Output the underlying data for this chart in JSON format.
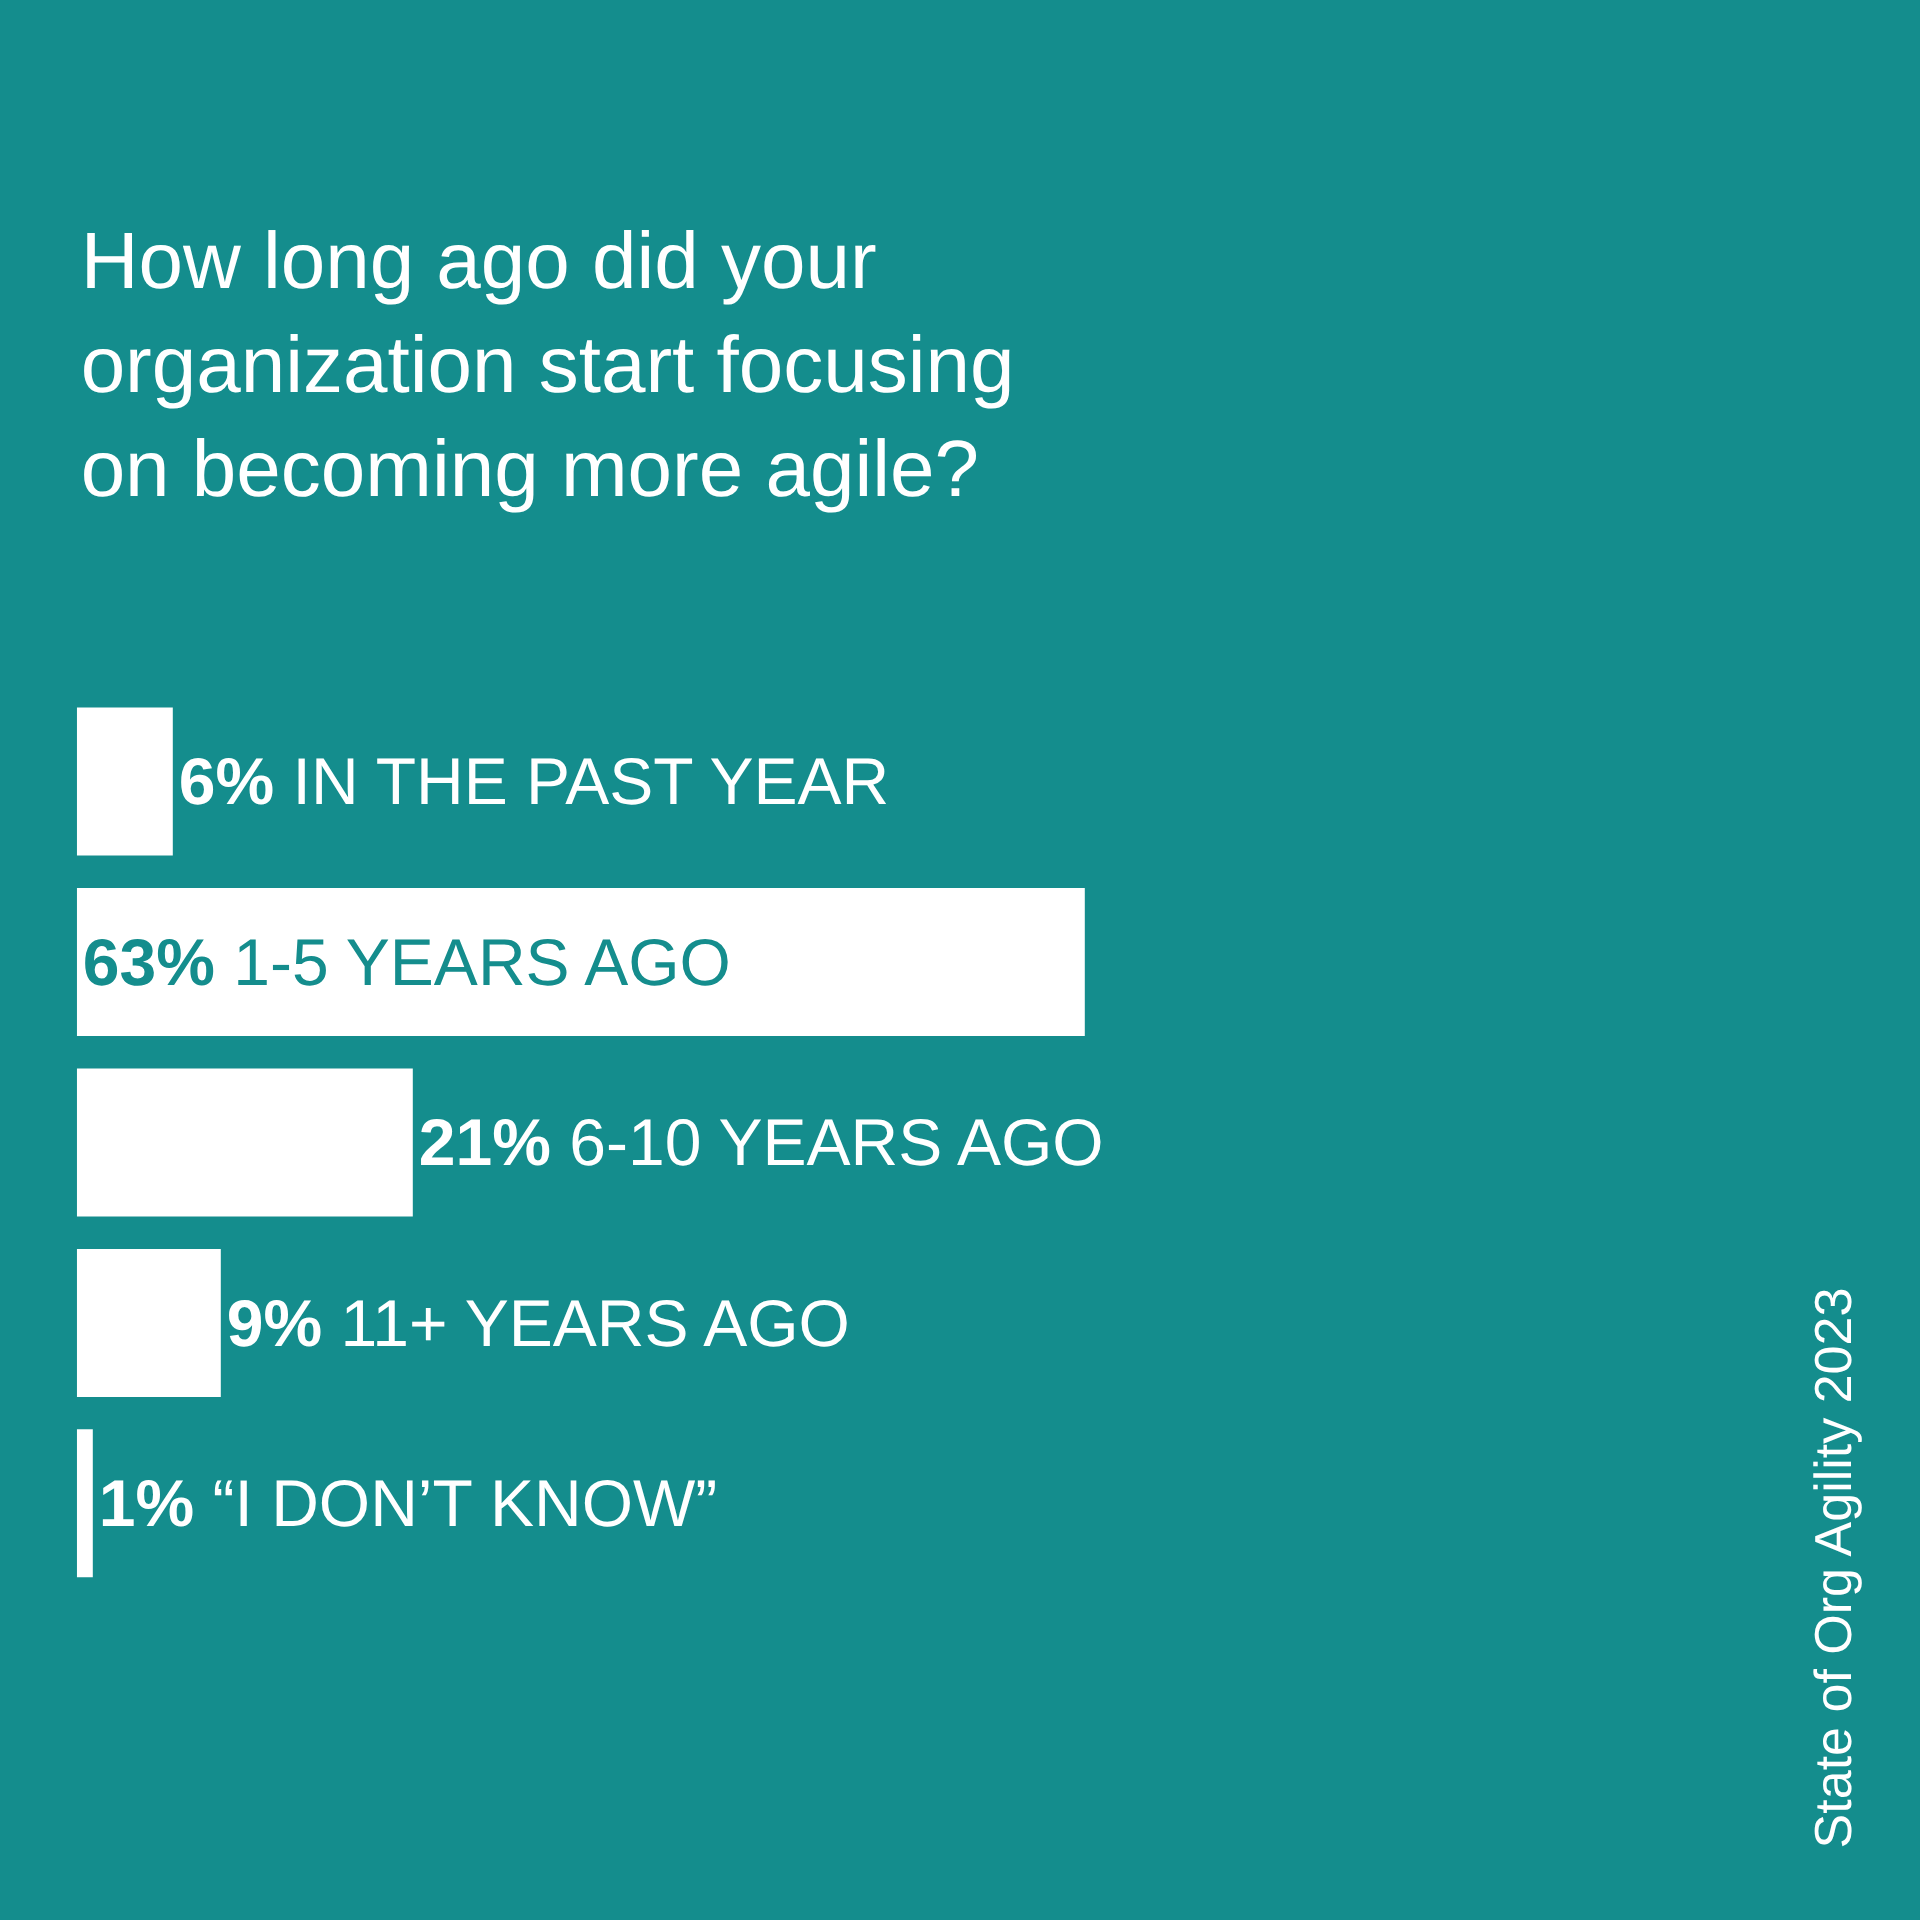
{
  "chart_data": {
    "type": "bar",
    "orientation": "horizontal",
    "title": "How long ago did your organization start focusing on becoming more agile?",
    "categories": [
      "IN THE PAST YEAR",
      "1-5 YEARS AGO",
      "6-10 YEARS AGO",
      "11+ YEARS AGO",
      "“I DON’T KNOW”"
    ],
    "values": [
      6,
      63,
      21,
      9,
      1
    ],
    "value_labels": [
      "6%",
      "63%",
      "21%",
      "9%",
      "1%"
    ],
    "color": "#ffffff",
    "tick_labels": false,
    "annotations": [
      "State of Org Agility 2023"
    ]
  }
}
